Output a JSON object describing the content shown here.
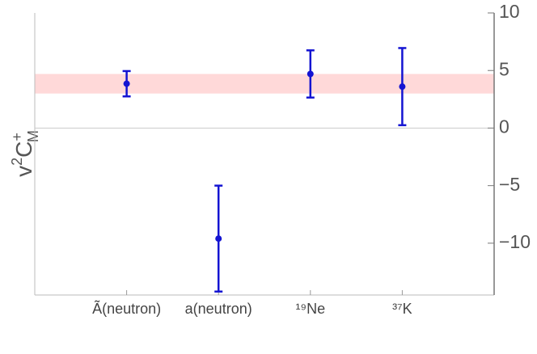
{
  "chart_data": {
    "type": "errorbar",
    "ylabel": [
      "v",
      "2",
      "C",
      "+",
      "M"
    ],
    "categories": [
      "Ã(neutron)",
      "a(neutron)",
      "¹⁹Ne",
      "³⁷K"
    ],
    "series": [
      {
        "color": "#1414d2",
        "values": [
          3.85,
          -9.6,
          4.7,
          3.6
        ],
        "errors": [
          1.1,
          4.6,
          2.05,
          3.35
        ]
      }
    ],
    "band": {
      "range": [
        3.0,
        4.7
      ],
      "color": "#ffd9d9"
    },
    "ylim": [
      -14.5,
      10
    ],
    "yticks": [
      {
        "value": -10,
        "label": "−10"
      },
      {
        "value": -5,
        "label": "−5"
      },
      0,
      5,
      10
    ],
    "y_axis_side": "right"
  }
}
